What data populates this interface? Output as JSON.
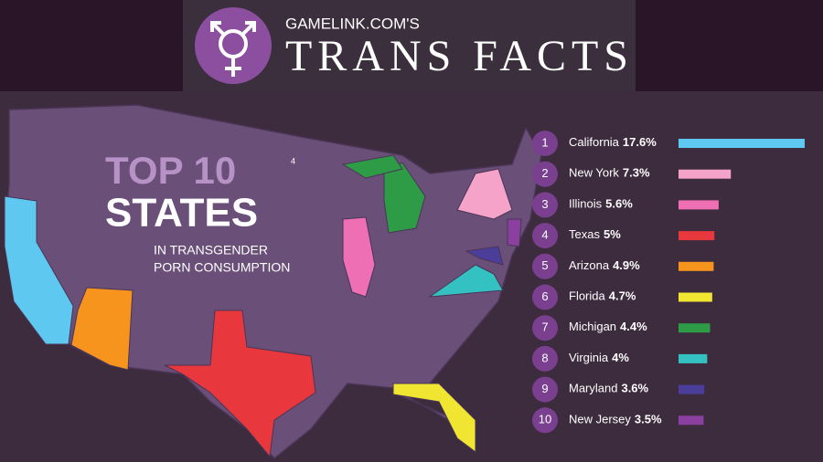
{
  "chart_data": {
    "type": "bar",
    "header": {
      "site": "GAMELINK.COM'S",
      "title": "TRANS FACTS"
    },
    "title": "TOP 10",
    "title_note": "4",
    "title_line2": "STATES",
    "subtitle": [
      "IN TRANSGENDER",
      "PORN CONSUMPTION"
    ],
    "ranks": [
      1,
      2,
      3,
      4,
      5,
      6,
      7,
      8,
      9,
      10
    ],
    "categories": [
      "California",
      "New York",
      "Illinois",
      "Texas",
      "Arizona",
      "Florida",
      "Michigan",
      "Virginia",
      "Maryland",
      "New Jersey"
    ],
    "values": [
      17.6,
      7.3,
      5.6,
      5,
      4.9,
      4.7,
      4.4,
      4,
      3.6,
      3.5
    ],
    "value_labels": [
      "17.6%",
      "7.3%",
      "5.6%",
      "5%",
      "4.9%",
      "4.7%",
      "4.4%",
      "4%",
      "3.6%",
      "3.5%"
    ],
    "colors": [
      "#5ec8f0",
      "#f5a3c8",
      "#ef6fb5",
      "#e8383d",
      "#f7941d",
      "#f0e531",
      "#2e9b47",
      "#33c1c1",
      "#4b3d9a",
      "#8b3f9e"
    ]
  }
}
